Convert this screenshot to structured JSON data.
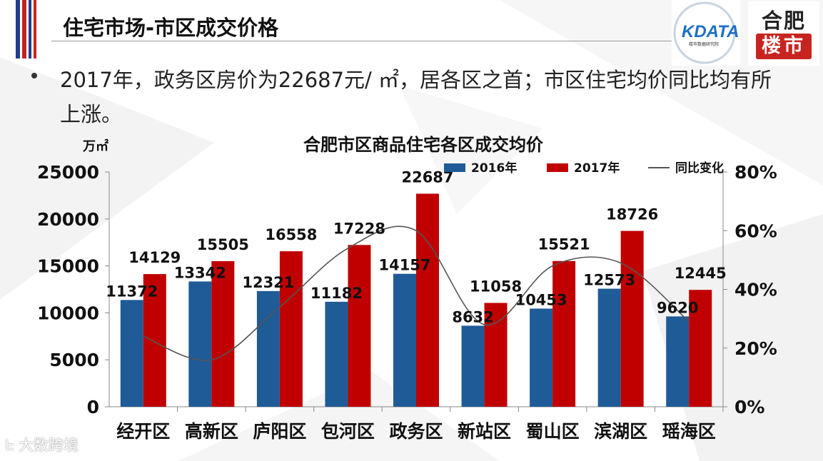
{
  "slide": {
    "title": "住宅市场-市区成交价格",
    "bullet": "2017年，政务区房价为22687元/ ㎡，居各区之首；市区住宅均价同比均有所上涨。",
    "logo_kdata": "KDATA",
    "logo_kdata_sub": "楼市数据研究院",
    "logo_hefei_top": "合肥",
    "logo_hefei_bottom": "楼市",
    "watermark": "大数跨境",
    "colors": {
      "series_2016": "#1f5b96",
      "series_2017": "#c00000",
      "line": "#555555",
      "accent_red": "#c8241f",
      "accent_blue": "#1f3f8f"
    }
  },
  "chart_data": {
    "type": "bar",
    "title": "合肥市区商品住宅各区成交均价",
    "ylabel": "万㎡",
    "ylim": [
      0,
      25000
    ],
    "y_ticks": [
      "0",
      "5000",
      "10000",
      "15000",
      "20000",
      "25000"
    ],
    "y2lim": [
      0,
      0.8
    ],
    "y2_ticks": [
      "0%",
      "20%",
      "40%",
      "60%",
      "80%"
    ],
    "categories": [
      "经开区",
      "高新区",
      "庐阳区",
      "包河区",
      "政务区",
      "新站区",
      "蜀山区",
      "滨湖区",
      "瑶海区"
    ],
    "series": [
      {
        "name": "2016年",
        "type": "bar",
        "values": [
          11372,
          13342,
          12321,
          11182,
          14157,
          8632,
          10453,
          12573,
          9620
        ]
      },
      {
        "name": "2017年",
        "type": "bar",
        "values": [
          14129,
          15505,
          16558,
          17228,
          22687,
          11058,
          15521,
          18726,
          12445
        ]
      },
      {
        "name": "同比变化",
        "type": "line",
        "axis": "right",
        "values": [
          0.24,
          0.16,
          0.34,
          0.54,
          0.6,
          0.28,
          0.48,
          0.49,
          0.29
        ]
      }
    ],
    "legend_placement": "top-right",
    "grid": false
  }
}
